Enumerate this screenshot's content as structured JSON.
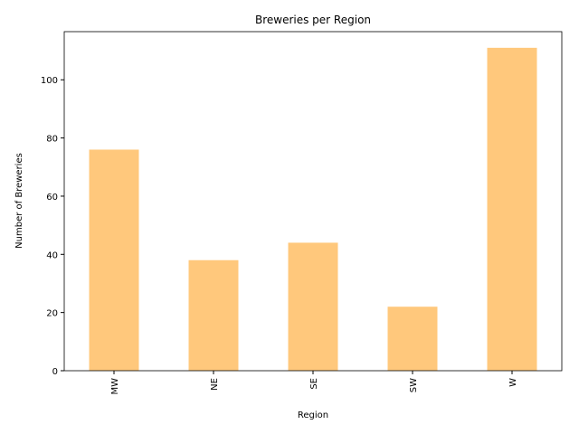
{
  "chart_data": {
    "type": "bar",
    "title": "Breweries per Region",
    "x_label": "Region",
    "y_label": "Number of Breweries",
    "categories": [
      "MW",
      "NE",
      "SE",
      "SW",
      "W"
    ],
    "values": [
      76,
      38,
      44,
      22,
      111
    ],
    "color": "#ffc87c",
    "ylim": [
      0,
      116.55
    ],
    "yticks": [
      0,
      20,
      40,
      60,
      80,
      100
    ],
    "grid": false
  }
}
